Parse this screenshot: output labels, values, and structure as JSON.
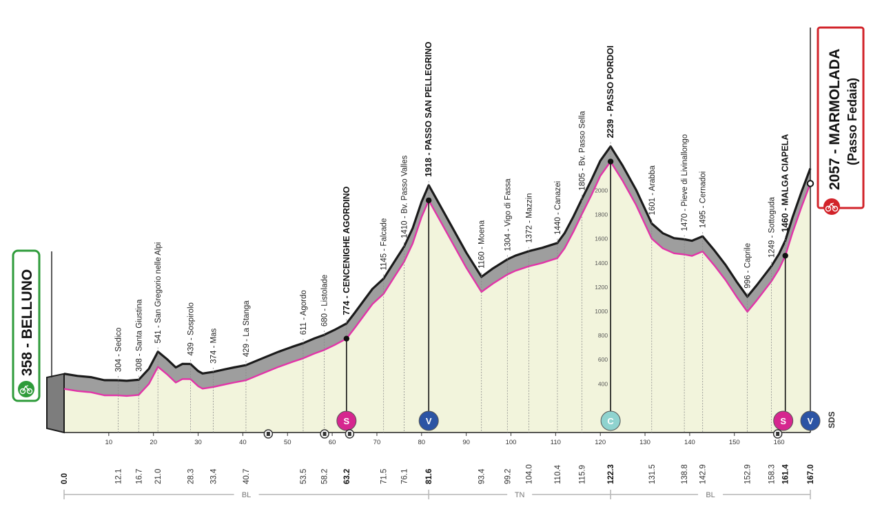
{
  "colors": {
    "grade_fill": "#9e9e9e",
    "profile_line": "#e233a8",
    "area_fill": "#f2f4dc",
    "sprint": "#d6268f",
    "gpm": "#2c54a4",
    "cima": "#8fd3cf",
    "start_border": "#2e9b3a",
    "finish_border": "#d2232a"
  },
  "start": {
    "label": "358 - BELLUNO",
    "icon": "bike-start-icon"
  },
  "finish": {
    "label": "2057 - MARMOLADA",
    "sublabel": "(Passo Fedaia)",
    "icon": "bike-finish-icon"
  },
  "brand": "SDS",
  "regions": [
    {
      "name": "BL"
    },
    {
      "name": "TN"
    },
    {
      "name": "BL"
    }
  ],
  "badges": [
    {
      "type": "sprint",
      "letter": "S",
      "km": 63.2
    },
    {
      "type": "gpm",
      "letter": "V",
      "km": 81.6
    },
    {
      "type": "cima",
      "letter": "C",
      "km": 122.3
    },
    {
      "type": "sprint",
      "letter": "S",
      "km": 161.4
    },
    {
      "type": "gpm",
      "letter": "V",
      "km": 167.0
    }
  ],
  "tunnels": [
    {
      "km": 45.7
    },
    {
      "km": 58.3
    },
    {
      "km": 63.9
    },
    {
      "km": 159.7
    }
  ],
  "chart_data": {
    "type": "area",
    "title": "",
    "xlabel": "",
    "ylabel": "",
    "xlim": [
      0,
      167
    ],
    "ylim": [
      0,
      2300
    ],
    "distance_ticks": [
      10,
      20,
      30,
      40,
      50,
      60,
      70,
      80,
      90,
      100,
      110,
      120,
      130,
      140,
      150,
      160
    ],
    "altitude_ticks": [
      400,
      600,
      800,
      1000,
      1200,
      1400,
      1600,
      1800,
      2000
    ],
    "locations": [
      {
        "km": 0.0,
        "km_label": "0.0",
        "label": "",
        "km_bold": true,
        "bold": false
      },
      {
        "km": 12.1,
        "km_label": "12.1",
        "label": "304 - Sedico",
        "bold": false
      },
      {
        "km": 16.7,
        "km_label": "16.7",
        "label": "308 - Santa Giustina",
        "bold": false
      },
      {
        "km": 21.0,
        "km_label": "21.0",
        "label": "541 - San Gregorio nelle Alpi",
        "bold": false
      },
      {
        "km": 28.3,
        "km_label": "28.3",
        "label": "439 - Sospirolo",
        "bold": false
      },
      {
        "km": 33.4,
        "km_label": "33.4",
        "label": "374 - Mas",
        "bold": false
      },
      {
        "km": 40.7,
        "km_label": "40.7",
        "label": "429 - La Stanga",
        "bold": false
      },
      {
        "km": 53.5,
        "km_label": "53.5",
        "label": "611 - Agordo",
        "bold": false
      },
      {
        "km": 58.2,
        "km_label": "58.2",
        "label": "680 - Listolade",
        "bold": false
      },
      {
        "km": 63.2,
        "km_label": "63.2",
        "label": "774 - CENCENIGHE AGORDINO",
        "bold": true,
        "km_bold": true
      },
      {
        "km": 71.5,
        "km_label": "71.5",
        "label": "1145 - Falcade",
        "bold": false
      },
      {
        "km": 76.1,
        "km_label": "76.1",
        "label": "1410 - Bv. Passo Valles",
        "bold": false
      },
      {
        "km": 81.6,
        "km_label": "81.6",
        "label": "1918 - PASSO SAN PELLEGRINO",
        "bold": true,
        "km_bold": true
      },
      {
        "km": 93.4,
        "km_label": "93.4",
        "label": "1160 - Moena",
        "bold": false
      },
      {
        "km": 99.2,
        "km_label": "99.2",
        "label": "1304 - Vigo di Fassa",
        "bold": false
      },
      {
        "km": 104.0,
        "km_label": "104.0",
        "label": "1372 - Mazzin",
        "bold": false
      },
      {
        "km": 110.4,
        "km_label": "110.4",
        "label": "1440 - Canazei",
        "bold": false
      },
      {
        "km": 115.9,
        "km_label": "115.9",
        "label": "1805 - Bv. Passo Sella",
        "bold": false
      },
      {
        "km": 122.3,
        "km_label": "122.3",
        "label": "2239 - PASSO PORDOI",
        "bold": true,
        "km_bold": true
      },
      {
        "km": 131.5,
        "km_label": "131.5",
        "label": "1601 - Arabba",
        "bold": false
      },
      {
        "km": 138.8,
        "km_label": "138.8",
        "label": "1470 - Pieve di Livinallongo",
        "bold": false
      },
      {
        "km": 142.9,
        "km_label": "142.9",
        "label": "1495 - Cernadoi",
        "bold": false
      },
      {
        "km": 152.9,
        "km_label": "152.9",
        "label": "996 - Caprile",
        "bold": false
      },
      {
        "km": 158.3,
        "km_label": "158.3",
        "label": "1249 - Sottoguda",
        "bold": false
      },
      {
        "km": 161.4,
        "km_label": "161.4",
        "label": "1460 - MALGA CIAPELA",
        "bold": true,
        "km_bold": true
      },
      {
        "km": 167.0,
        "km_label": "167.0",
        "label": "",
        "km_bold": true,
        "bold": false
      }
    ],
    "profile": [
      [
        0,
        358
      ],
      [
        3,
        340
      ],
      [
        6,
        330
      ],
      [
        9,
        305
      ],
      [
        12.1,
        304
      ],
      [
        14,
        300
      ],
      [
        16.7,
        308
      ],
      [
        19,
        400
      ],
      [
        21,
        541
      ],
      [
        23,
        480
      ],
      [
        25,
        410
      ],
      [
        26.5,
        440
      ],
      [
        28.3,
        439
      ],
      [
        30,
        380
      ],
      [
        31,
        360
      ],
      [
        33.4,
        374
      ],
      [
        36,
        395
      ],
      [
        38,
        410
      ],
      [
        40.7,
        429
      ],
      [
        44,
        480
      ],
      [
        48,
        540
      ],
      [
        51,
        580
      ],
      [
        53.5,
        611
      ],
      [
        56,
        650
      ],
      [
        58.2,
        680
      ],
      [
        60.5,
        720
      ],
      [
        63.2,
        774
      ],
      [
        65,
        860
      ],
      [
        67,
        960
      ],
      [
        69,
        1060
      ],
      [
        71.5,
        1145
      ],
      [
        74,
        1290
      ],
      [
        76.1,
        1410
      ],
      [
        78,
        1560
      ],
      [
        80,
        1780
      ],
      [
        81.6,
        1918
      ],
      [
        84,
        1760
      ],
      [
        87,
        1560
      ],
      [
        90,
        1360
      ],
      [
        93.4,
        1160
      ],
      [
        96,
        1230
      ],
      [
        99.2,
        1304
      ],
      [
        101,
        1335
      ],
      [
        104,
        1372
      ],
      [
        107,
        1400
      ],
      [
        110.4,
        1440
      ],
      [
        112,
        1520
      ],
      [
        114,
        1660
      ],
      [
        115.9,
        1805
      ],
      [
        118,
        1960
      ],
      [
        120,
        2120
      ],
      [
        122.3,
        2239
      ],
      [
        125,
        2080
      ],
      [
        128,
        1880
      ],
      [
        131.5,
        1601
      ],
      [
        134,
        1520
      ],
      [
        136.5,
        1480
      ],
      [
        138.8,
        1470
      ],
      [
        140.5,
        1458
      ],
      [
        142.9,
        1495
      ],
      [
        145.5,
        1380
      ],
      [
        148,
        1260
      ],
      [
        150.5,
        1120
      ],
      [
        152.9,
        996
      ],
      [
        155,
        1090
      ],
      [
        158.3,
        1249
      ],
      [
        160,
        1350
      ],
      [
        161.4,
        1460
      ],
      [
        163,
        1650
      ],
      [
        165,
        1860
      ],
      [
        167,
        2057
      ]
    ]
  }
}
